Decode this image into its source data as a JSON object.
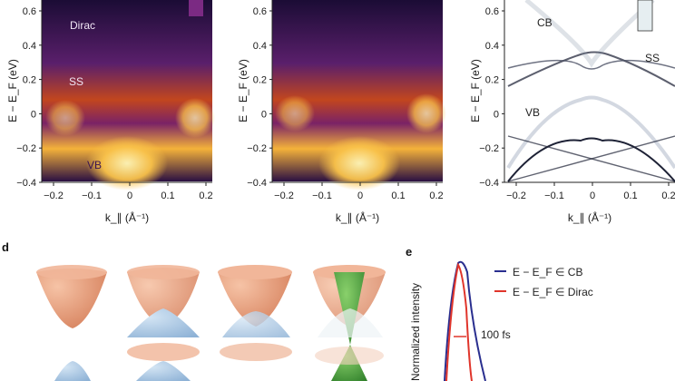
{
  "panel_letters": {
    "d": "d",
    "e": "e"
  },
  "arpes_panels": {
    "y_ticks": [
      "0.6",
      "0.4",
      "0.2",
      "0",
      "−0.2",
      "−0.4"
    ],
    "x_ticks": [
      "−0.2",
      "−0.1",
      "0",
      "0.1",
      "0.2"
    ],
    "ylabel": "E − E_F (eV)",
    "xlabel": "k_∥ (Å⁻¹)",
    "panel1_labels": {
      "dirac": "Dirac",
      "ss": "SS",
      "vb": "VB"
    },
    "panel3_labels": {
      "cb": "CB",
      "ss": "SS",
      "vb": "VB"
    }
  },
  "panel_e": {
    "ylabel": "Normalized intensity",
    "legend": [
      {
        "label": "E − E_F ∈ CB",
        "color": "#2a2f8f"
      },
      {
        "label": "E − E_F ∈ Dirac",
        "color": "#e0352b"
      }
    ],
    "annotation": "100 fs"
  },
  "colors": {
    "arpes_dark": "#1a0a2e",
    "arpes_bright": "#fff2a8",
    "cone_orange": "#e9a07e",
    "cone_blue": "#a9c6e2",
    "cone_green": "#4fae3a",
    "cb_line": "#2a2f8f",
    "dirac_line": "#e0352b"
  }
}
